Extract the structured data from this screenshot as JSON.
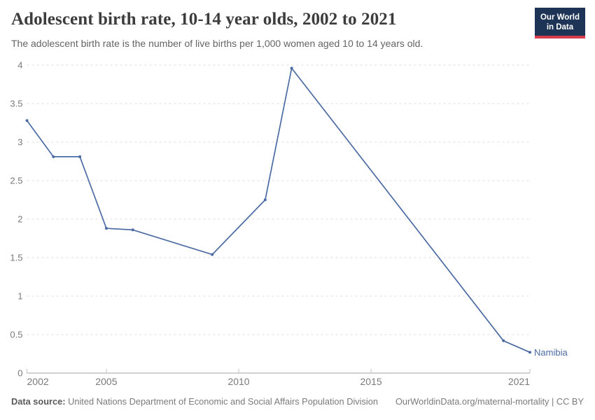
{
  "chart_data": {
    "type": "line",
    "title": "Adolescent birth rate, 10-14 year olds, 2002 to 2021",
    "subtitle": "The adolescent birth rate is the number of live births per 1,000 women aged 10 to 14 years old.",
    "x": [
      2002,
      2003,
      2004,
      2005,
      2006,
      2009,
      2011,
      2012,
      2020,
      2021
    ],
    "series": [
      {
        "name": "Namibia",
        "color": "#4C6BA3",
        "values": [
          3.28,
          2.81,
          2.81,
          1.88,
          1.86,
          1.54,
          2.25,
          3.96,
          0.42,
          0.27
        ]
      }
    ],
    "xlabel": "",
    "ylabel": "",
    "xlim": [
      2002,
      2021
    ],
    "ylim": [
      0,
      4
    ],
    "xticks": [
      2002,
      2005,
      2010,
      2015,
      2021
    ],
    "yticks": [
      0,
      0.5,
      1,
      1.5,
      2,
      2.5,
      3,
      3.5,
      4
    ],
    "grid": "horizontal-dashed",
    "legend": "end-of-line-label",
    "gridline_color": "#dcdcdc",
    "axis_color": "#a3a3a3"
  },
  "logo": {
    "line1": "Our World",
    "line2": "in Data",
    "bg_color": "#1d3456",
    "accent_color": "#d73c4c"
  },
  "footer": {
    "source_label": "Data source:",
    "source_value": "United Nations Department of Economic and Social Affairs Population Division",
    "credit": "OurWorldinData.org/maternal-mortality | CC BY"
  }
}
